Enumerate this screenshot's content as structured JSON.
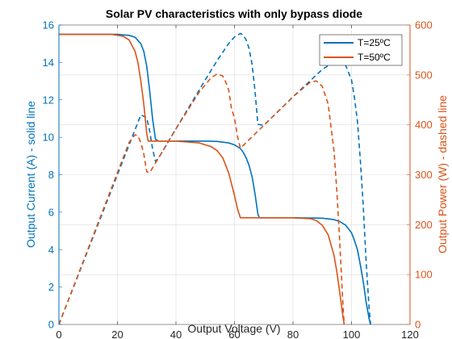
{
  "chart_data": {
    "type": "line",
    "title": "Solar PV characteristics with only bypass diode",
    "xlabel": "Output Voltage (V)",
    "ylabel_left": "Output Current (A) - solid line",
    "ylabel_right": "Output Power (W) - dashed line",
    "xlim": [
      0,
      120
    ],
    "ylim_left": [
      0,
      16
    ],
    "ylim_right": [
      0,
      600
    ],
    "xticks": [
      0,
      20,
      40,
      60,
      80,
      100,
      120
    ],
    "yticks_left": [
      0,
      2,
      4,
      6,
      8,
      10,
      12,
      14,
      16
    ],
    "yticks_right": [
      0,
      100,
      200,
      300,
      400,
      500,
      600
    ],
    "grid": true,
    "legend_position": "top-right",
    "colors": {
      "t25": "#0072BD",
      "t50": "#D95319",
      "axis_left": "#0072BD",
      "axis_right": "#D95319"
    },
    "series": [
      {
        "name": "T=25ºC",
        "key": "t25",
        "current": {
          "x": [
            0,
            20,
            24,
            26,
            28,
            29,
            30,
            31,
            32,
            33,
            34,
            40,
            50,
            54,
            58,
            60,
            62,
            63,
            64,
            65,
            66,
            67,
            68,
            68.5,
            69,
            70,
            80,
            90,
            94,
            96,
            98,
            100,
            101,
            102,
            103,
            104,
            105,
            106,
            106.5
          ],
          "y": [
            15.5,
            15.5,
            15.45,
            15.35,
            15.0,
            14.6,
            13.8,
            12.5,
            11.0,
            9.9,
            9.8,
            9.8,
            9.8,
            9.78,
            9.7,
            9.6,
            9.4,
            9.2,
            8.9,
            8.5,
            7.9,
            7.0,
            5.9,
            5.7,
            5.7,
            5.7,
            5.7,
            5.68,
            5.6,
            5.5,
            5.3,
            4.9,
            4.5,
            4.0,
            3.2,
            2.3,
            1.2,
            0.3,
            0
          ]
        },
        "power": {
          "x": [
            0,
            28,
            30,
            31,
            32,
            33,
            34,
            40,
            50,
            54,
            58,
            60,
            62,
            63,
            64,
            65,
            66,
            67,
            68,
            70,
            80,
            90,
            94,
            96,
            98,
            100,
            101,
            102,
            103,
            104,
            105,
            106,
            106.5
          ],
          "y": [
            0,
            420,
            414,
            388,
            352,
            327,
            333,
            392,
            490,
            528,
            563,
            576,
            583,
            580,
            570,
            553,
            521,
            469,
            401,
            399,
            456,
            511,
            526,
            528,
            519,
            490,
            455,
            408,
            330,
            239,
            126,
            32,
            0
          ]
        }
      },
      {
        "name": "T=50ºC",
        "key": "t50",
        "current": {
          "x": [
            0,
            18,
            22,
            24,
            26,
            27,
            28,
            29,
            30,
            30.5,
            31,
            40,
            48,
            52,
            54,
            56,
            58,
            60,
            61,
            62,
            62.5,
            63,
            70,
            80,
            86,
            88,
            90,
            92,
            94,
            95,
            96,
            97,
            97.5
          ],
          "y": [
            15.5,
            15.5,
            15.4,
            15.2,
            14.6,
            14.0,
            13.0,
            11.8,
            10.2,
            9.8,
            9.8,
            9.8,
            9.7,
            9.5,
            9.3,
            8.9,
            8.1,
            6.9,
            6.2,
            5.7,
            5.7,
            5.7,
            5.7,
            5.7,
            5.65,
            5.55,
            5.3,
            4.8,
            3.7,
            2.8,
            1.7,
            0.5,
            0
          ]
        },
        "power": {
          "x": [
            0,
            24,
            26,
            27,
            28,
            29,
            30,
            31,
            40,
            48,
            52,
            54,
            56,
            57,
            58,
            59,
            60,
            61,
            62,
            70,
            80,
            86,
            88,
            90,
            92,
            94,
            95,
            96,
            97,
            97.5
          ],
          "y": [
            0,
            365,
            380,
            378,
            364,
            342,
            306,
            304,
            392,
            466,
            494,
            502,
            498,
            486,
            470,
            432,
            414,
            378,
            353,
            399,
            456,
            486,
            488,
            477,
            442,
            348,
            266,
            163,
            49,
            0
          ]
        }
      }
    ]
  }
}
